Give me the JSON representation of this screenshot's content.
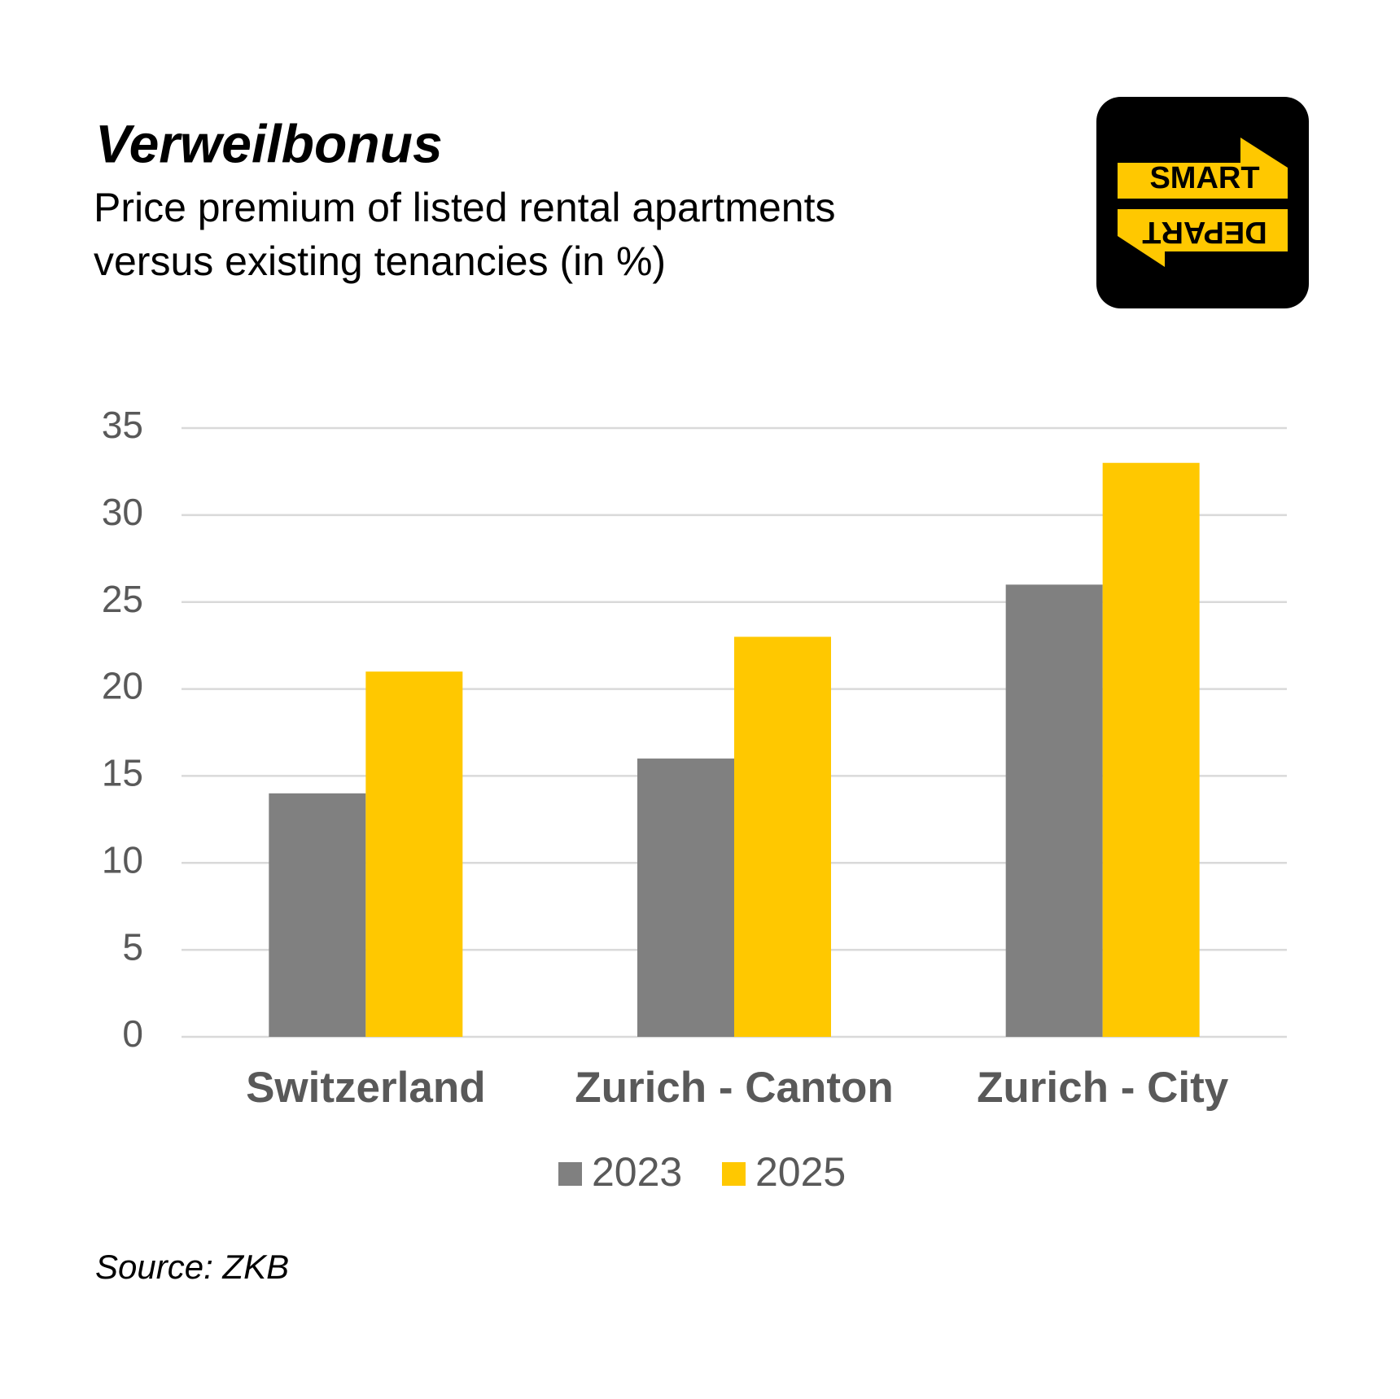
{
  "chart_data": {
    "type": "bar",
    "title": "Verweilbonus",
    "subtitle": [
      "Price premium of listed rental apartments",
      "versus existing tenancies (in %)"
    ],
    "categories": [
      "Switzerland",
      "Zurich - Canton",
      "Zurich - City"
    ],
    "series": [
      {
        "name": "2023",
        "color": "#808080",
        "values": [
          14,
          16,
          26
        ]
      },
      {
        "name": "2025",
        "color": "#ffc800",
        "values": [
          21,
          23,
          33
        ]
      }
    ],
    "ylim": [
      0,
      35
    ],
    "yticks": [
      0,
      5,
      10,
      15,
      20,
      25,
      30,
      35
    ],
    "grid": true,
    "legend": "bottom",
    "source": "Source: ZKB"
  },
  "logo": {
    "top": "SMART",
    "bottom": "DEPART"
  }
}
